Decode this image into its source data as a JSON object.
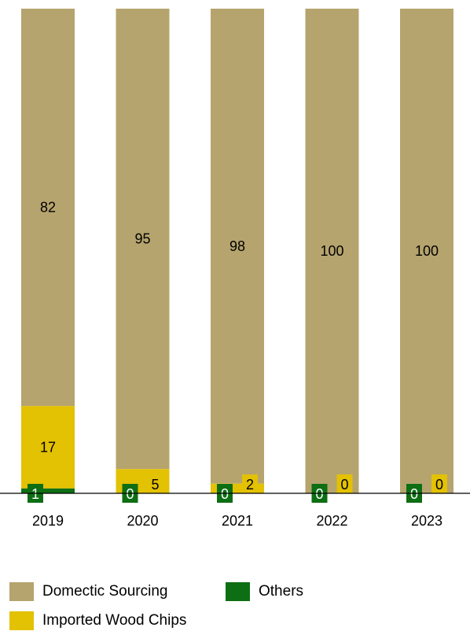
{
  "chart_data": {
    "type": "bar",
    "stacked": true,
    "categories": [
      "2019",
      "2020",
      "2021",
      "2022",
      "2023"
    ],
    "series": [
      {
        "name": "Others",
        "values": [
          1,
          0,
          0,
          0,
          0
        ],
        "color": "#0e6e14"
      },
      {
        "name": "Imported Wood Chips",
        "values": [
          17,
          5,
          2,
          0,
          0
        ],
        "color": "#e3c103"
      },
      {
        "name": "Domectic Sourcing",
        "values": [
          82,
          95,
          98,
          100,
          100
        ],
        "color": "#b6a46e"
      }
    ],
    "ylim": [
      0,
      100
    ],
    "legend_position": "bottom",
    "grid": false,
    "title": "",
    "xlabel": "",
    "ylabel": ""
  },
  "legend": {
    "domestic": "Domectic Sourcing",
    "others": "Others",
    "imported": "Imported Wood Chips"
  }
}
